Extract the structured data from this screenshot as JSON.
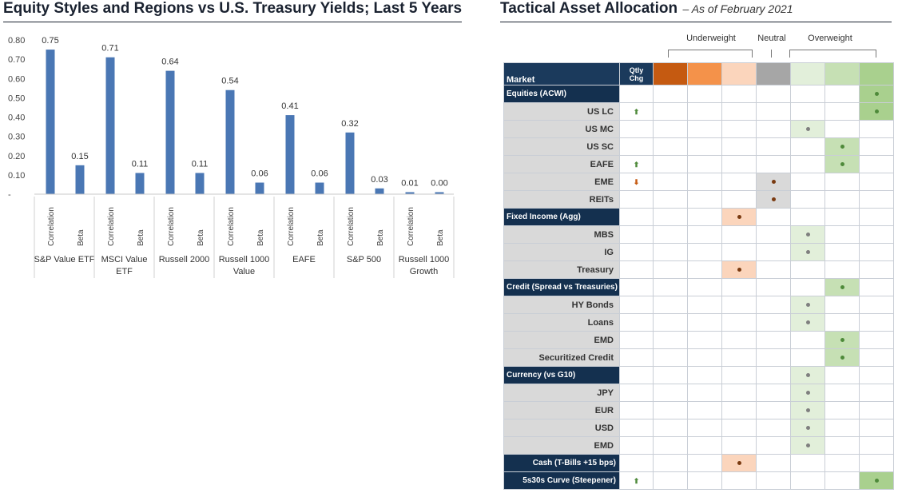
{
  "left": {
    "title": "Equity Styles and Regions vs U.S. Treasury Yields; Last 5 Years"
  },
  "chart_data": {
    "type": "bar",
    "title": "Equity Styles and Regions vs U.S. Treasury Yields; Last 5 Years",
    "ylim": [
      0,
      0.8
    ],
    "yticks": [
      "0.80",
      "0.70",
      "0.60",
      "0.50",
      "0.40",
      "0.30",
      "0.20",
      "0.10",
      "-"
    ],
    "ytick_values": [
      0.8,
      0.7,
      0.6,
      0.5,
      0.4,
      0.3,
      0.2,
      0.1,
      0
    ],
    "bar_color": "#4a77b4",
    "sub_categories": [
      "Correlation",
      "Beta"
    ],
    "groups": [
      {
        "name": "S&P Value ETF",
        "lines": [
          "S&P Value ETF"
        ],
        "values": [
          0.75,
          0.15
        ],
        "labels": [
          "0.75",
          "0.15"
        ]
      },
      {
        "name": "MSCI Value ETF",
        "lines": [
          "MSCI Value",
          "ETF"
        ],
        "values": [
          0.71,
          0.11
        ],
        "labels": [
          "0.71",
          "0.11"
        ]
      },
      {
        "name": "Russell 2000",
        "lines": [
          "Russell 2000"
        ],
        "values": [
          0.64,
          0.11
        ],
        "labels": [
          "0.64",
          "0.11"
        ]
      },
      {
        "name": "Russell 1000 Value",
        "lines": [
          "Russell 1000",
          "Value"
        ],
        "values": [
          0.54,
          0.06
        ],
        "labels": [
          "0.54",
          "0.06"
        ]
      },
      {
        "name": "EAFE",
        "lines": [
          "EAFE"
        ],
        "values": [
          0.41,
          0.06
        ],
        "labels": [
          "0.41",
          "0.06"
        ]
      },
      {
        "name": "S&P 500",
        "lines": [
          "S&P 500"
        ],
        "values": [
          0.32,
          0.03
        ],
        "labels": [
          "0.32",
          "0.03"
        ]
      },
      {
        "name": "Russell 1000 Growth",
        "lines": [
          "Russell 1000",
          "Growth"
        ],
        "values": [
          0.01,
          0.0
        ],
        "labels": [
          "0.01",
          "0.00"
        ]
      }
    ],
    "grid": false
  },
  "right": {
    "title": "Tactical Asset Allocation",
    "subtitle": "– As of February 2021",
    "groups": {
      "underweight": "Underweight",
      "neutral": "Neutral",
      "overweight": "Overweight"
    },
    "header": {
      "market": "Market",
      "qtly_chg_line1": "Qtly",
      "qtly_chg_line2": "Chg"
    },
    "scale_colors": [
      "#c55a11",
      "#f4924a",
      "#fbd5bc",
      "#a6a6a6",
      "#e2efda",
      "#c6e0b4",
      "#a9d08e"
    ],
    "dot_colors": {
      "uw": "#7a3a10",
      "n": "#7f7f7f",
      "ow": "#4e8a3a"
    },
    "rows": [
      {
        "type": "section",
        "label": "Equities  (ACWI)",
        "align": "left",
        "chg": "",
        "pos": 6
      },
      {
        "type": "item",
        "label": "US LC",
        "chg": "up",
        "pos": 6
      },
      {
        "type": "item",
        "label": "US MC",
        "chg": "",
        "pos": 4
      },
      {
        "type": "item",
        "label": "US SC",
        "chg": "",
        "pos": 5
      },
      {
        "type": "item",
        "label": "EAFE",
        "chg": "up",
        "pos": 5
      },
      {
        "type": "item",
        "label": "EME",
        "chg": "down",
        "pos": 3
      },
      {
        "type": "item",
        "label": "REITs",
        "chg": "",
        "pos": 3
      },
      {
        "type": "section",
        "label": "Fixed Income (Agg)",
        "align": "left",
        "chg": "",
        "pos": 2
      },
      {
        "type": "item",
        "label": "MBS",
        "chg": "",
        "pos": 4
      },
      {
        "type": "item",
        "label": "IG",
        "chg": "",
        "pos": 4
      },
      {
        "type": "item",
        "label": "Treasury",
        "chg": "",
        "pos": 2
      },
      {
        "type": "section",
        "label": "Credit (Spread vs Treasuries)",
        "align": "left",
        "chg": "",
        "pos": 5
      },
      {
        "type": "item",
        "label": "HY Bonds",
        "chg": "",
        "pos": 4
      },
      {
        "type": "item",
        "label": "Loans",
        "chg": "",
        "pos": 4
      },
      {
        "type": "item",
        "label": "EMD",
        "chg": "",
        "pos": 5
      },
      {
        "type": "item",
        "label": "Securitized Credit",
        "chg": "",
        "pos": 5
      },
      {
        "type": "section",
        "label": "Currency (vs G10)",
        "align": "left",
        "chg": "",
        "pos": 4
      },
      {
        "type": "item",
        "label": "JPY",
        "chg": "",
        "pos": 4
      },
      {
        "type": "item",
        "label": "EUR",
        "chg": "",
        "pos": 4
      },
      {
        "type": "item",
        "label": "USD",
        "chg": "",
        "pos": 4
      },
      {
        "type": "item",
        "label": "EMD",
        "chg": "",
        "pos": 4
      },
      {
        "type": "section",
        "label": "Cash (T-Bills +15 bps)",
        "align": "right",
        "chg": "",
        "pos": 2
      },
      {
        "type": "section",
        "label": "5s30s Curve (Steepener)",
        "align": "right",
        "chg": "up",
        "pos": 6
      }
    ]
  }
}
